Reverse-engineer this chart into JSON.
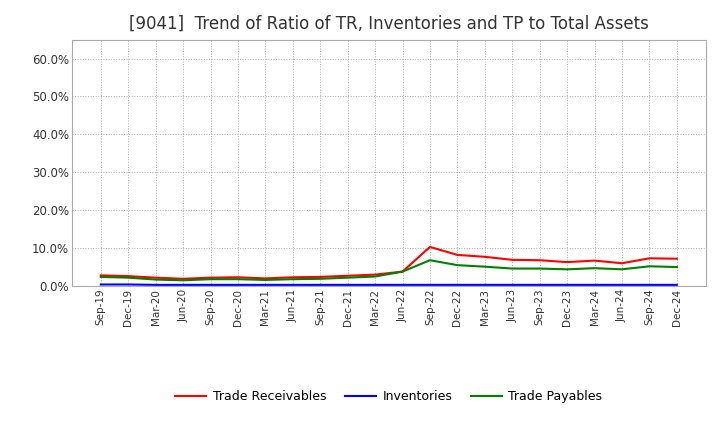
{
  "title": "[9041]  Trend of Ratio of TR, Inventories and TP to Total Assets",
  "title_fontsize": 12,
  "background_color": "#ffffff",
  "grid_color": "#aaaaaa",
  "ylim": [
    0.0,
    0.65
  ],
  "yticks": [
    0.0,
    0.1,
    0.2,
    0.3,
    0.4,
    0.5,
    0.6
  ],
  "labels": {
    "trade_receivables": "Trade Receivables",
    "inventories": "Inventories",
    "trade_payables": "Trade Payables"
  },
  "colors": {
    "trade_receivables": "#ff0000",
    "inventories": "#0000ff",
    "trade_payables": "#008000"
  },
  "x_labels": [
    "Sep-19",
    "Dec-19",
    "Mar-20",
    "Jun-20",
    "Sep-20",
    "Dec-20",
    "Mar-21",
    "Jun-21",
    "Sep-21",
    "Dec-21",
    "Mar-22",
    "Jun-22",
    "Sep-22",
    "Dec-22",
    "Mar-23",
    "Jun-23",
    "Sep-23",
    "Dec-23",
    "Mar-24",
    "Jun-24",
    "Sep-24",
    "Dec-24"
  ],
  "trade_receivables": [
    0.028,
    0.026,
    0.022,
    0.019,
    0.022,
    0.023,
    0.02,
    0.023,
    0.024,
    0.027,
    0.03,
    0.038,
    0.103,
    0.082,
    0.077,
    0.069,
    0.068,
    0.063,
    0.067,
    0.06,
    0.073,
    0.072
  ],
  "inventories": [
    0.004,
    0.004,
    0.003,
    0.003,
    0.003,
    0.003,
    0.003,
    0.003,
    0.003,
    0.003,
    0.003,
    0.003,
    0.003,
    0.003,
    0.003,
    0.003,
    0.003,
    0.003,
    0.003,
    0.003,
    0.003,
    0.003
  ],
  "trade_payables": [
    0.024,
    0.022,
    0.017,
    0.015,
    0.018,
    0.018,
    0.016,
    0.018,
    0.019,
    0.022,
    0.025,
    0.038,
    0.068,
    0.055,
    0.051,
    0.046,
    0.046,
    0.044,
    0.047,
    0.044,
    0.052,
    0.05
  ]
}
